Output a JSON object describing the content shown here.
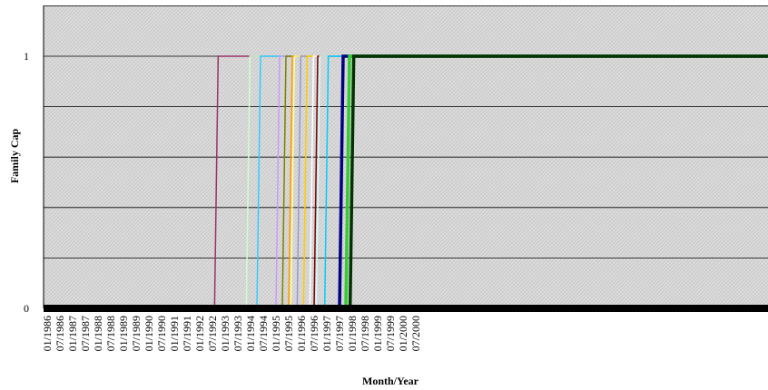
{
  "chart_data": {
    "type": "line",
    "title": "",
    "xlabel": "Month/Year",
    "ylabel": "Family Cap",
    "ylim": [
      0,
      1
    ],
    "yticks": [
      {
        "value": 0,
        "label": "0"
      },
      {
        "value": 1,
        "label": "1"
      }
    ],
    "ygrid_lines": [
      0.2,
      0.4,
      0.6,
      0.8,
      1.0,
      1.2
    ],
    "x_categories": [
      "01/1986",
      "07/1986",
      "01/1987",
      "07/1987",
      "01/1988",
      "07/1988",
      "01/1989",
      "07/1989",
      "01/1990",
      "07/1990",
      "01/1991",
      "07/1991",
      "01/1992",
      "07/1992",
      "01/1993",
      "07/1993",
      "01/1994",
      "07/1994",
      "01/1995",
      "07/1995",
      "01/1996",
      "07/1996",
      "01/1997",
      "07/1997",
      "01/1998",
      "07/1998",
      "01/1999",
      "07/1999",
      "01/2000",
      "07/2000"
    ],
    "grid": true,
    "legend": "none",
    "plot_background": "#d9d9d9",
    "baseline_color": "#000000",
    "series": [
      {
        "color": "#993366",
        "change_date": "08/1992",
        "values": [
          0,
          1
        ]
      },
      {
        "color": "#ccffcc",
        "change_date": "11/1993",
        "values": [
          0,
          1
        ]
      },
      {
        "color": "#33ccff",
        "change_date": "04/1994",
        "values": [
          0,
          1
        ]
      },
      {
        "color": "#cc99ff",
        "change_date": "01/1995",
        "values": [
          0,
          1
        ]
      },
      {
        "color": "#808000",
        "change_date": "04/1995",
        "values": [
          0,
          1
        ]
      },
      {
        "color": "#ff9900",
        "change_date": "07/1995",
        "values": [
          0,
          1
        ]
      },
      {
        "color": "#ffff99",
        "change_date": "08/1995",
        "values": [
          0,
          1
        ]
      },
      {
        "color": "#9999cc",
        "change_date": "11/1995",
        "values": [
          0,
          1
        ]
      },
      {
        "color": "#ffcc00",
        "change_date": "02/1996",
        "values": [
          0,
          1
        ]
      },
      {
        "color": "#ffffff",
        "change_date": "05/1996",
        "values": [
          0,
          1
        ]
      },
      {
        "color": "#800000",
        "change_date": "07/1996",
        "values": [
          0,
          1
        ]
      },
      {
        "color": "#ccffff",
        "change_date": "08/1996",
        "values": [
          0,
          1
        ]
      },
      {
        "color": "#00ccff",
        "change_date": "12/1996",
        "values": [
          0,
          1
        ]
      },
      {
        "color": "#000080",
        "change_date": "07/1997",
        "values": [
          0,
          1
        ]
      },
      {
        "color": "#33cc33",
        "change_date": "10/1997",
        "values": [
          0,
          1
        ]
      },
      {
        "color": "#003300",
        "change_date": "12/1997",
        "values": [
          0,
          1
        ]
      }
    ]
  }
}
